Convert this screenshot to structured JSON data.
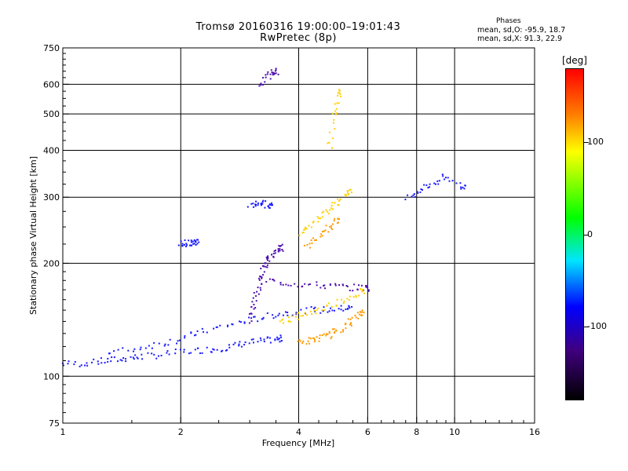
{
  "chart_data": {
    "type": "scatter",
    "title": "Tromsø 20160316 19:00:00–19:01:43",
    "subtitle": "RwPretec (8p)",
    "xlabel": "Frequency [MHz]",
    "ylabel": "Stationary phase Virtual Height [km]",
    "x_scale": "log",
    "y_scale": "log",
    "xlim": [
      1,
      16
    ],
    "ylim": [
      75,
      750
    ],
    "x_ticks": [
      1,
      2,
      4,
      6,
      8,
      10,
      16
    ],
    "x_tick_labels": [
      "1",
      "2",
      "4",
      "6",
      "8",
      "10",
      "16"
    ],
    "y_ticks": [
      75,
      100,
      200,
      300,
      400,
      500,
      600,
      750
    ],
    "y_tick_labels": [
      "75",
      "100",
      "200",
      "300",
      "400",
      "500",
      "600",
      "750"
    ],
    "grid": true,
    "phase_stats": {
      "heading": "Phases",
      "o_line": "mean, sd,O: -95.9, 18.7",
      "x_line": "mean, sd,X:  91.3, 22.9"
    },
    "colorbar": {
      "unit": "[deg]",
      "ticks": [
        "100",
        "0",
        "-100"
      ],
      "tick_values": [
        100,
        0,
        -100
      ],
      "range": [
        -180,
        180
      ]
    },
    "colors": {
      "o_mode": "#1a1aff",
      "o_mode_dark": "#5010b0",
      "x_mode": "#ffd000",
      "x_mode_orange": "#ff9a00",
      "misc": "#30c0ff"
    },
    "traces": [
      {
        "mode": "O",
        "color": "#1a1aff",
        "x": [
          1.0,
          1.1,
          1.2,
          1.3,
          1.4,
          1.5,
          1.6,
          1.8,
          2.0,
          2.2,
          2.4,
          2.6,
          2.8,
          3.0,
          3.2,
          3.4,
          3.6
        ],
        "y": [
          108,
          108,
          109,
          110,
          111,
          112,
          113,
          114,
          116,
          117,
          118,
          119,
          121,
          123,
          124,
          125,
          126
        ]
      },
      {
        "mode": "O",
        "color": "#1a1aff",
        "x": [
          1.3,
          1.5,
          1.7,
          1.9,
          2.1,
          2.3,
          2.6,
          2.9,
          3.2,
          3.5,
          3.8,
          4.2,
          4.6,
          5.0,
          5.4
        ],
        "y": [
          115,
          118,
          121,
          124,
          128,
          132,
          136,
          140,
          143,
          146,
          148,
          150,
          150,
          151,
          152
        ]
      },
      {
        "mode": "O",
        "color": "#5010b0",
        "x": [
          3.0,
          3.05,
          3.1,
          3.15,
          3.2,
          3.25,
          3.3,
          3.35,
          3.4,
          3.5,
          3.6
        ],
        "y": [
          140,
          150,
          160,
          170,
          180,
          190,
          200,
          205,
          210,
          215,
          220
        ]
      },
      {
        "mode": "O",
        "color": "#5010b0",
        "x": [
          3.3,
          3.6,
          4.0,
          4.4,
          4.8,
          5.2,
          5.6,
          6.0
        ],
        "y": [
          180,
          178,
          176,
          175,
          174,
          173,
          172,
          172
        ]
      },
      {
        "mode": "O",
        "color": "#1a1aff",
        "x": [
          2.0,
          2.05,
          2.1,
          2.15,
          2.2
        ],
        "y": [
          225,
          226,
          227,
          226,
          227
        ]
      },
      {
        "mode": "O",
        "color": "#1a1aff",
        "x": [
          3.0,
          3.1,
          3.2,
          3.3,
          3.4
        ],
        "y": [
          285,
          288,
          290,
          287,
          286
        ]
      },
      {
        "mode": "O",
        "color": "#5010b0",
        "x": [
          3.2,
          3.3,
          3.4,
          3.5
        ],
        "y": [
          600,
          620,
          640,
          650
        ]
      },
      {
        "mode": "X",
        "color": "#ff9a00",
        "x": [
          4.0,
          4.2,
          4.4,
          4.6,
          4.8,
          5.0,
          5.2,
          5.4,
          5.6,
          5.8
        ],
        "y": [
          123,
          124,
          125,
          127,
          129,
          132,
          135,
          139,
          143,
          148
        ]
      },
      {
        "mode": "X",
        "color": "#ffd000",
        "x": [
          3.6,
          3.8,
          4.0,
          4.3,
          4.6,
          5.0,
          5.4,
          5.8
        ],
        "y": [
          140,
          142,
          145,
          148,
          152,
          157,
          162,
          168
        ]
      },
      {
        "mode": "X",
        "color": "#ffd000",
        "x": [
          4.0,
          4.2,
          4.4,
          4.6,
          4.8,
          5.0,
          5.2,
          5.4
        ],
        "y": [
          240,
          250,
          260,
          270,
          280,
          290,
          300,
          310
        ]
      },
      {
        "mode": "X",
        "color": "#ff9a00",
        "x": [
          4.2,
          4.4,
          4.6,
          4.8,
          5.0
        ],
        "y": [
          220,
          230,
          240,
          250,
          260
        ]
      },
      {
        "mode": "X",
        "color": "#ffd000",
        "x": [
          4.8,
          4.9,
          5.0,
          5.1
        ],
        "y": [
          400,
          480,
          520,
          570
        ]
      },
      {
        "mode": "O",
        "color": "#1a1aff",
        "x": [
          7.5,
          8.0,
          8.5,
          9.0,
          9.5,
          10.5
        ],
        "y": [
          300,
          310,
          320,
          330,
          340,
          320
        ]
      }
    ]
  }
}
